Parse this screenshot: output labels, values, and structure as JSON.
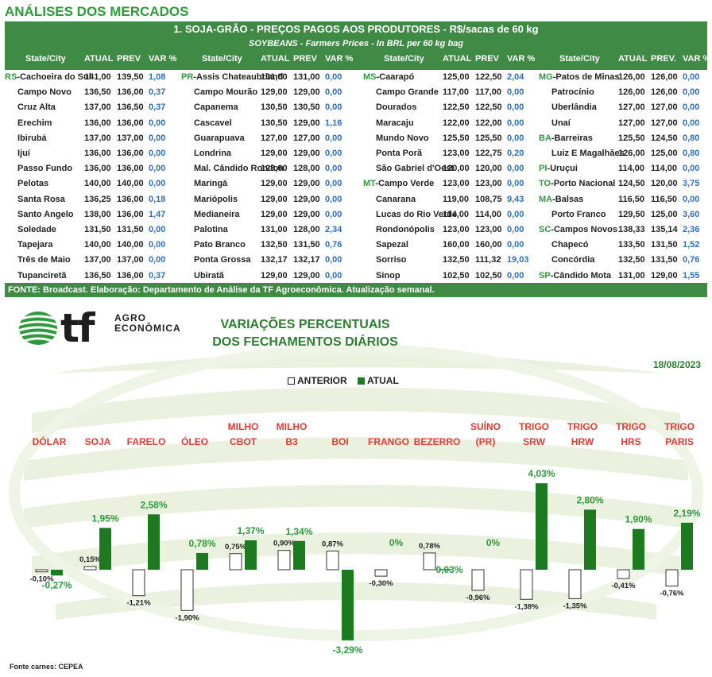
{
  "section_title": "ANÁLISES DOS MERCADOS",
  "table": {
    "title": "1. SOJA-GRÃO - PREÇOS PAGOS AOS PRODUTORES - R$/sacas de 60 kg",
    "subtitle": "SOYBEANS - Farmers Prices - In BRL per 60 kg bag",
    "groups": [
      {
        "headers": [
          "State/City",
          "ATUAL",
          "PREV",
          "VAR %"
        ],
        "rows": [
          {
            "state": "RS",
            "city": "-Cachoeira do Sul",
            "atual": "141,00",
            "prev": "139,50",
            "var": "1,08"
          },
          {
            "state": "",
            "city": "Campo Novo",
            "atual": "136,50",
            "prev": "136,00",
            "var": "0,37"
          },
          {
            "state": "",
            "city": "Cruz Alta",
            "atual": "137,00",
            "prev": "136,50",
            "var": "0,37"
          },
          {
            "state": "",
            "city": "Erechim",
            "atual": "136,00",
            "prev": "136,00",
            "var": "0,00"
          },
          {
            "state": "",
            "city": "Ibirubá",
            "atual": "137,00",
            "prev": "137,00",
            "var": "0,00"
          },
          {
            "state": "",
            "city": "Ijuí",
            "atual": "136,00",
            "prev": "136,00",
            "var": "0,00"
          },
          {
            "state": "",
            "city": "Passo Fundo",
            "atual": "136,00",
            "prev": "136,00",
            "var": "0,00"
          },
          {
            "state": "",
            "city": "Pelotas",
            "atual": "140,00",
            "prev": "140,00",
            "var": "0,00"
          },
          {
            "state": "",
            "city": "Santa Rosa",
            "atual": "136,25",
            "prev": "136,00",
            "var": "0,18"
          },
          {
            "state": "",
            "city": "Santo Angelo",
            "atual": "138,00",
            "prev": "136,00",
            "var": "1,47"
          },
          {
            "state": "",
            "city": "Soledade",
            "atual": "131,50",
            "prev": "131,50",
            "var": "0,00"
          },
          {
            "state": "",
            "city": "Tapejara",
            "atual": "140,00",
            "prev": "140,00",
            "var": "0,00"
          },
          {
            "state": "",
            "city": "Três de Maio",
            "atual": "137,00",
            "prev": "137,00",
            "var": "0,00"
          },
          {
            "state": "",
            "city": "Tupanciretã",
            "atual": "136,50",
            "prev": "136,00",
            "var": "0,37"
          }
        ]
      },
      {
        "headers": [
          "State/City",
          "ATUAL",
          "PREV",
          "VAR %"
        ],
        "rows": [
          {
            "state": "PR",
            "city": "-Assis Chateaubriand",
            "atual": "131,00",
            "prev": "131,00",
            "var": "0,00"
          },
          {
            "state": "",
            "city": "Campo Mourão",
            "atual": "129,00",
            "prev": "129,00",
            "var": "0,00"
          },
          {
            "state": "",
            "city": "Capanema",
            "atual": "130,50",
            "prev": "130,50",
            "var": "0,00"
          },
          {
            "state": "",
            "city": "Cascavel",
            "atual": "130,50",
            "prev": "129,00",
            "var": "1,16"
          },
          {
            "state": "",
            "city": "Guarapuava",
            "atual": "127,00",
            "prev": "127,00",
            "var": "0,00"
          },
          {
            "state": "",
            "city": "Londrina",
            "atual": "129,00",
            "prev": "129,00",
            "var": "0,00"
          },
          {
            "state": "",
            "city": "Mal. Cândido Rondon",
            "atual": "128,00",
            "prev": "128,00",
            "var": "0,00"
          },
          {
            "state": "",
            "city": "Maringá",
            "atual": "129,00",
            "prev": "129,00",
            "var": "0,00"
          },
          {
            "state": "",
            "city": "Mariópolis",
            "atual": "129,00",
            "prev": "129,00",
            "var": "0,00"
          },
          {
            "state": "",
            "city": "Medianeira",
            "atual": "129,00",
            "prev": "129,00",
            "var": "0,00"
          },
          {
            "state": "",
            "city": "Palotina",
            "atual": "131,00",
            "prev": "128,00",
            "var": "2,34"
          },
          {
            "state": "",
            "city": "Pato Branco",
            "atual": "132,50",
            "prev": "131,50",
            "var": "0,76"
          },
          {
            "state": "",
            "city": "Ponta Grossa",
            "atual": "132,17",
            "prev": "132,17",
            "var": "0,00"
          },
          {
            "state": "",
            "city": "Ubiratã",
            "atual": "129,00",
            "prev": "129,00",
            "var": "0,00"
          }
        ]
      },
      {
        "headers": [
          "State/City",
          "ATUAL",
          "PREV",
          "VAR %"
        ],
        "rows": [
          {
            "state": "MS",
            "city": "-Caarapó",
            "atual": "125,00",
            "prev": "122,50",
            "var": "2,04"
          },
          {
            "state": "",
            "city": "Campo Grande",
            "atual": "117,00",
            "prev": "117,00",
            "var": "0,00"
          },
          {
            "state": "",
            "city": "Dourados",
            "atual": "122,50",
            "prev": "122,50",
            "var": "0,00"
          },
          {
            "state": "",
            "city": "Maracaju",
            "atual": "122,00",
            "prev": "122,00",
            "var": "0,00"
          },
          {
            "state": "",
            "city": "Mundo Novo",
            "atual": "125,50",
            "prev": "125,50",
            "var": "0,00"
          },
          {
            "state": "",
            "city": "Ponta Porã",
            "atual": "123,00",
            "prev": "122,75",
            "var": "0,20"
          },
          {
            "state": "",
            "city": "São Gabriel d'Oest",
            "atual": "120,00",
            "prev": "120,00",
            "var": "0,00"
          },
          {
            "state": "MT",
            "city": "-Campo Verde",
            "atual": "123,00",
            "prev": "123,00",
            "var": "0,00"
          },
          {
            "state": "",
            "city": "Canarana",
            "atual": "119,00",
            "prev": "108,75",
            "var": "9,43"
          },
          {
            "state": "",
            "city": "Lucas do Rio Verde",
            "atual": "114,00",
            "prev": "114,00",
            "var": "0,00"
          },
          {
            "state": "",
            "city": "Rondonópolis",
            "atual": "123,00",
            "prev": "123,00",
            "var": "0,00"
          },
          {
            "state": "",
            "city": "Sapezal",
            "atual": "160,00",
            "prev": "160,00",
            "var": "0,00"
          },
          {
            "state": "",
            "city": "Sorriso",
            "atual": "132,50",
            "prev": "111,32",
            "var": "19,03"
          },
          {
            "state": "",
            "city": "Sinop",
            "atual": "102,50",
            "prev": "102,50",
            "var": "0,00"
          }
        ]
      },
      {
        "headers": [
          "State/City",
          "ATUAL",
          "PREV.",
          "VAR %"
        ],
        "rows": [
          {
            "state": "MG",
            "city": "-Patos de Minas",
            "atual": "126,00",
            "prev": "126,00",
            "var": "0,00"
          },
          {
            "state": "",
            "city": "Patrocínio",
            "atual": "126,00",
            "prev": "126,00",
            "var": "0,00"
          },
          {
            "state": "",
            "city": "Uberlândia",
            "atual": "127,00",
            "prev": "127,00",
            "var": "0,00"
          },
          {
            "state": "",
            "city": "Unaí",
            "atual": "127,00",
            "prev": "127,00",
            "var": "0,00"
          },
          {
            "state": "BA",
            "city": "-Barreiras",
            "atual": "125,50",
            "prev": "124,50",
            "var": "0,80"
          },
          {
            "state": "",
            "city": "Luiz E Magalhães",
            "atual": "126,00",
            "prev": "125,00",
            "var": "0,80"
          },
          {
            "state": "PI",
            "city": "-Uruçui",
            "atual": "114,00",
            "prev": "114,00",
            "var": "0,00"
          },
          {
            "state": "TO",
            "city": "-Porto Nacional",
            "atual": "124,50",
            "prev": "120,00",
            "var": "3,75"
          },
          {
            "state": "MA",
            "city": "-Balsas",
            "atual": "116,50",
            "prev": "116,50",
            "var": "0,00"
          },
          {
            "state": "",
            "city": "Porto Franco",
            "atual": "129,50",
            "prev": "125,00",
            "var": "3,60"
          },
          {
            "state": "SC",
            "city": "-Campos Novos",
            "atual": "138,33",
            "prev": "135,14",
            "var": "2,36"
          },
          {
            "state": "",
            "city": "Chapecó",
            "atual": "133,50",
            "prev": "131,50",
            "var": "1,52"
          },
          {
            "state": "",
            "city": "Concórdia",
            "atual": "132,50",
            "prev": "131,50",
            "var": "0,76"
          },
          {
            "state": "SP",
            "city": "-Cândido Mota",
            "atual": "131,00",
            "prev": "129,00",
            "var": "1,55"
          }
        ]
      }
    ],
    "source": "FONTE: Broadcast. Elaboração: Departamento de Análise da TF Agroeconômica. Atualização semanal."
  },
  "logo": {
    "mark": "tf",
    "line1": "AGRO",
    "line2": "ECONÔMICA"
  },
  "chart_data": {
    "type": "bar",
    "title_line1": "VARIAÇÕES PERCENTUAIS",
    "title_line2": "DOS FECHAMENTOS DIÁRIOS",
    "date": "18/08/2023",
    "categories": [
      [
        "DÓLAR"
      ],
      [
        "SOJA"
      ],
      [
        "FARELO"
      ],
      [
        "ÓLEO"
      ],
      [
        "MILHO",
        "CBOT"
      ],
      [
        "MILHO",
        "B3"
      ],
      [
        "BOI"
      ],
      [
        "FRANGO"
      ],
      [
        "BEZERRO"
      ],
      [
        "SUÍNO",
        "(PR)"
      ],
      [
        "TRIGO",
        "SRW"
      ],
      [
        "TRIGO",
        "HRW"
      ],
      [
        "TRIGO",
        "HRS"
      ],
      [
        "TRIGO",
        "PARIS"
      ]
    ],
    "series": [
      {
        "name": "ANTERIOR",
        "values": [
          -0.1,
          0.15,
          -1.21,
          -1.9,
          0.75,
          0.9,
          0.87,
          -0.3,
          0.78,
          -0.96,
          -1.38,
          -1.35,
          -0.41,
          -0.76
        ],
        "labels": [
          "-0,10%",
          "0,15%",
          "-1,21%",
          "-1,90%",
          "0,75%",
          "0,90%",
          "0,87%",
          "-0,30%",
          "0,78%",
          "-0,96%",
          "-1,38%",
          "-1,35%",
          "-0,41%",
          "-0,76%"
        ],
        "color": "#ffffff"
      },
      {
        "name": "ATUAL",
        "values": [
          -0.27,
          1.95,
          2.58,
          0.78,
          1.37,
          1.34,
          -3.29,
          0,
          0.03,
          0,
          4.03,
          2.8,
          1.9,
          2.19
        ],
        "labels": [
          "-0,27%",
          "1,95%",
          "2,58%",
          "0,78%",
          "1,37%",
          "1,34%",
          "-3,29%",
          "0%",
          "0,03%",
          "0%",
          "4,03%",
          "2,80%",
          "1,90%",
          "2,19%"
        ],
        "color": "#1e7a1e"
      }
    ],
    "label_color_current": "#2e9a3c",
    "category_color": "#e53935",
    "ylim": [
      -3.29,
      4.03
    ]
  },
  "footnote": "Fonte carnes: CEPEA"
}
